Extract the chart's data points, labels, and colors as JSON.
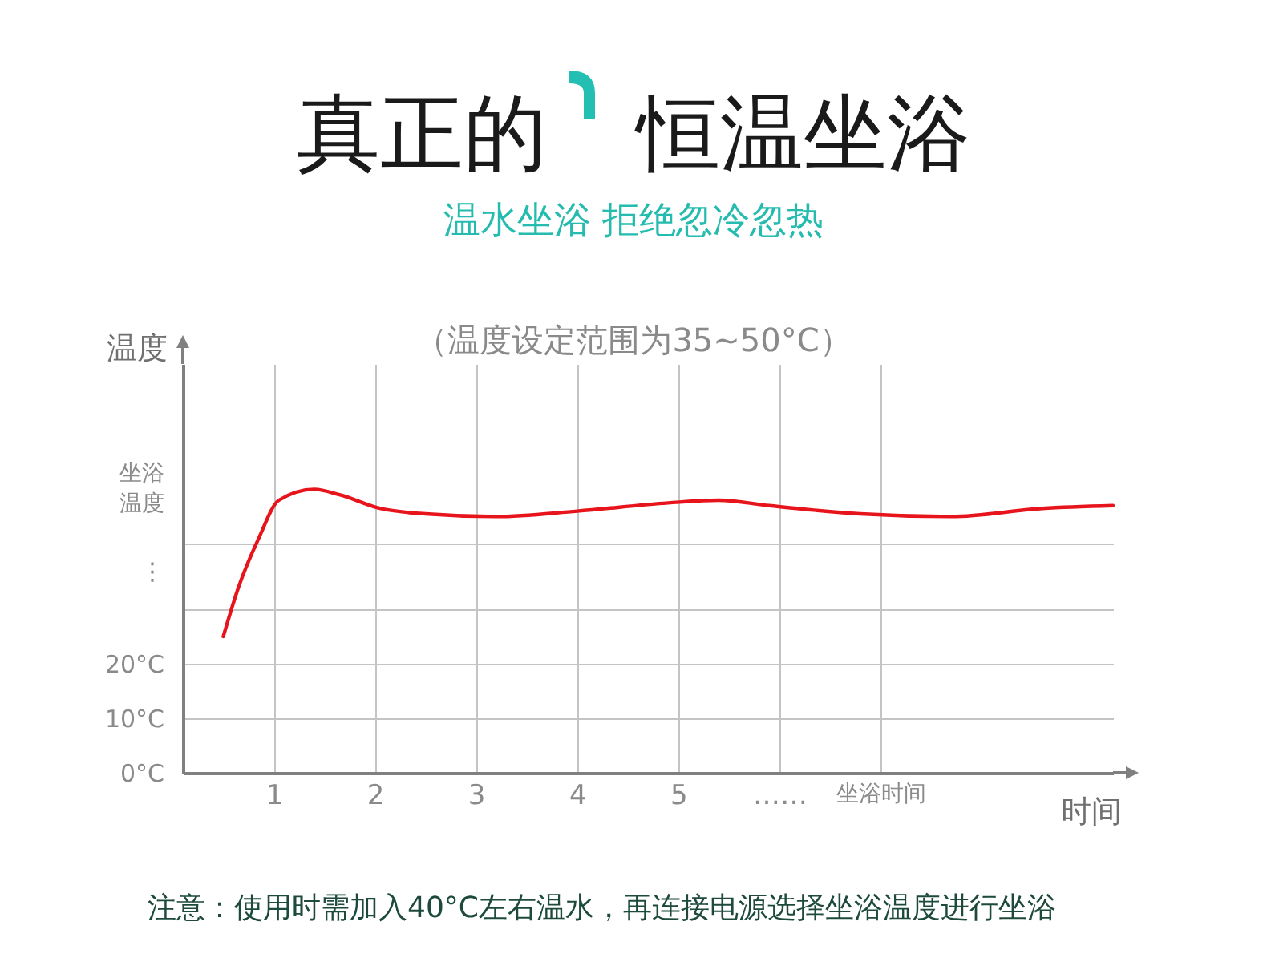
{
  "chart_data": {
    "type": "line",
    "title": "真正的 恒温坐浴",
    "subtitle": "温水坐浴 拒绝忽冷忽热",
    "xlabel": "时间",
    "ylabel": "温度",
    "annotations": [
      "（温度设定范围为35~50°C）",
      "注意：使用时需加入40°C左右温水，再连接电源选择坐浴温度进行坐浴"
    ],
    "x": [
      0.5,
      0.65,
      0.85,
      1.05,
      1.4,
      1.65,
      2.05,
      2.5,
      3.2,
      4,
      4.9,
      5.4,
      5.9,
      6.8,
      7.7,
      8.6,
      9.3
    ],
    "series": [
      {
        "color": "#e8141c",
        "values": [
          25,
          34,
          43,
          50,
          52,
          51,
          48.5,
          47.5,
          47,
          48,
          49.5,
          50,
          49,
          47.5,
          47,
          48.5,
          49
        ]
      }
    ],
    "xlim": [
      0.1,
      9.3
    ],
    "xticks": [
      1,
      2,
      3,
      4,
      5,
      {
        "value": 6,
        "label": "……"
      },
      {
        "value": 7,
        "label": "坐浴时间"
      }
    ],
    "ylim": [
      0,
      75
    ],
    "yticks": [
      {
        "value": 0,
        "label": "0°C"
      },
      {
        "value": 10,
        "label": "10°C"
      },
      {
        "value": 20,
        "label": "20°C"
      },
      {
        "value": 30,
        "label": null
      },
      {
        "value": 37,
        "label": "⋮"
      },
      {
        "value": 42,
        "label": null
      },
      {
        "value": 55,
        "label": "坐浴温度"
      }
    ],
    "grid": true
  }
}
